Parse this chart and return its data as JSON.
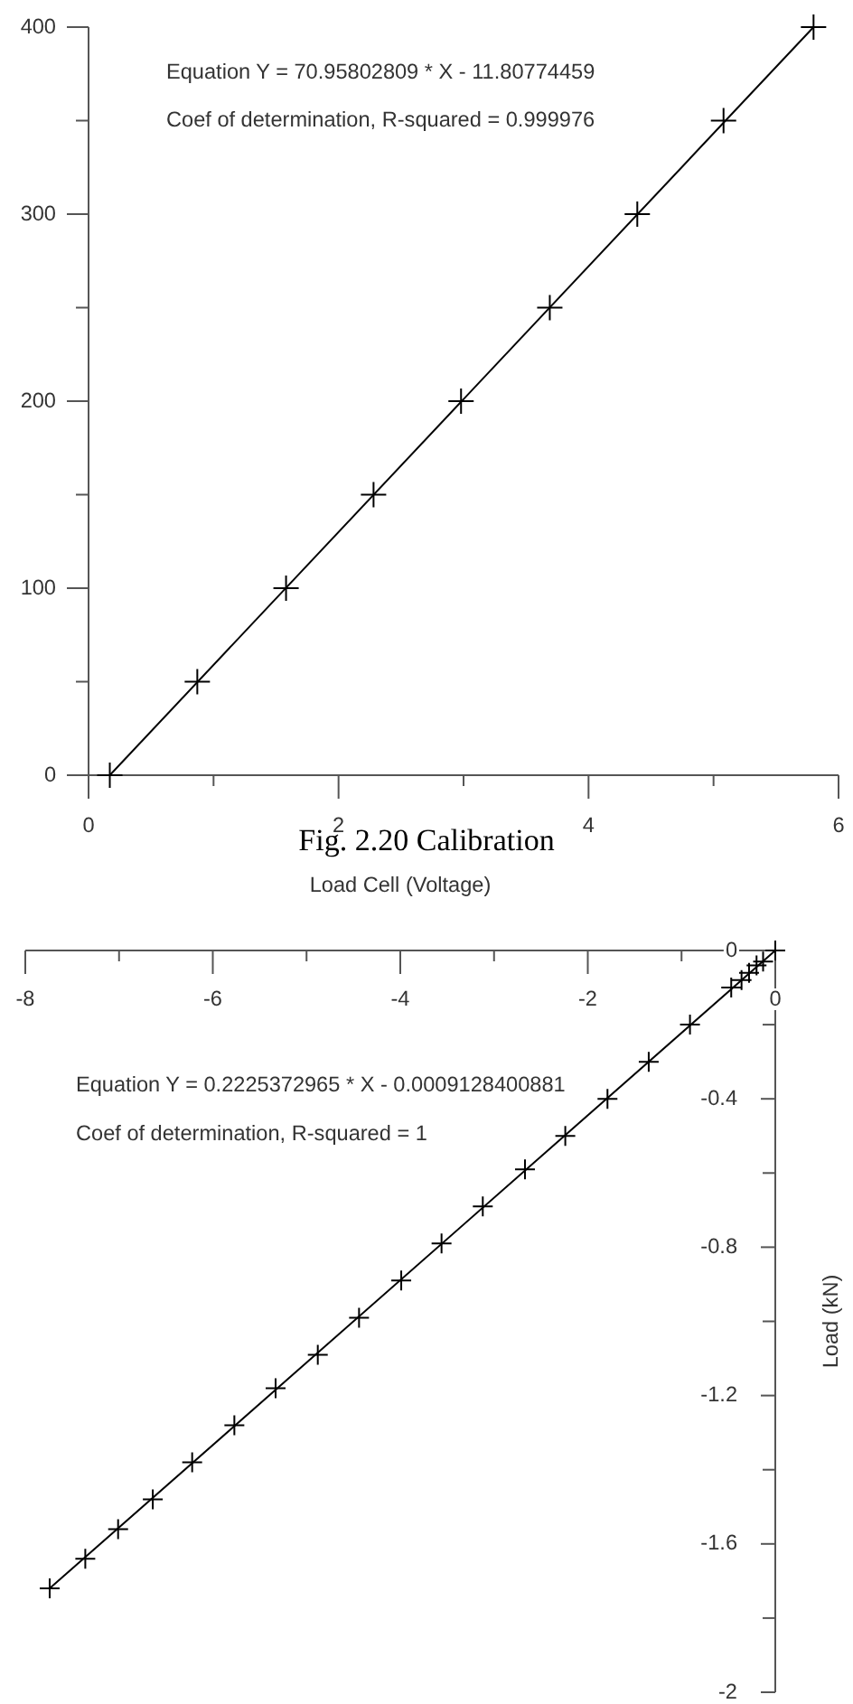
{
  "chart_data": [
    {
      "type": "scatter",
      "xlim": [
        0,
        6
      ],
      "xticks": [
        0,
        {
          "value": 1,
          "label": null
        },
        2,
        {
          "value": 3,
          "label": null
        },
        4,
        {
          "value": 5,
          "label": null
        },
        6
      ],
      "ylim": [
        0,
        400
      ],
      "yticks": [
        0,
        {
          "value": 50,
          "label": null
        },
        100,
        {
          "value": 150,
          "label": null
        },
        200,
        {
          "value": 250,
          "label": null
        },
        300,
        {
          "value": 350,
          "label": null
        },
        400
      ],
      "marker": "cross",
      "series": [
        {
          "type": "scatter",
          "color": "#000000",
          "x": [
            0.17,
            0.87,
            1.58,
            2.28,
            2.98,
            3.69,
            4.39,
            5.08,
            5.8
          ],
          "values": [
            0,
            50,
            100,
            150,
            200,
            250,
            300,
            350,
            400
          ]
        },
        {
          "type": "line",
          "marker": "none",
          "color": "#000000",
          "x": [
            0.17,
            5.8
          ],
          "values": [
            0,
            400
          ]
        }
      ],
      "annotations": [
        "Equation Y = 70.95802809 * X - 11.80774459",
        "Coef of determination, R-squared = 0.999976",
        "Fig. 2.20 Calibration"
      ]
    },
    {
      "type": "scatter",
      "xlabel": "Load Cell (Voltage)",
      "ylabel": "Load (kN)",
      "xlim": [
        -8,
        0
      ],
      "xticks": [
        -8,
        {
          "value": -7,
          "label": null
        },
        -6,
        {
          "value": -5,
          "label": null
        },
        -4,
        {
          "value": -3,
          "label": null
        },
        -2,
        {
          "value": -1,
          "label": null
        },
        0
      ],
      "ylim": [
        -2,
        0
      ],
      "yticks": [
        -2,
        {
          "value": -1.8,
          "label": null
        },
        -1.6,
        {
          "value": -1.4,
          "label": null
        },
        -1.2,
        {
          "value": -1,
          "label": null
        },
        -0.8,
        {
          "value": -0.6,
          "label": null
        },
        -0.4,
        {
          "value": -0.2,
          "label": null
        },
        0
      ],
      "marker": "cross",
      "series": [
        {
          "type": "scatter",
          "color": "#000000",
          "x": [
            -7.74,
            -7.36,
            -7.01,
            -6.64,
            -6.22,
            -5.77,
            -5.33,
            -4.88,
            -4.44,
            -3.99,
            -3.56,
            -3.12,
            -2.67,
            -2.24,
            -1.79,
            -1.35,
            -0.91,
            -0.47,
            -0.36,
            -0.28,
            -0.2,
            -0.13,
            0
          ],
          "values": [
            -1.72,
            -1.64,
            -1.56,
            -1.48,
            -1.38,
            -1.28,
            -1.18,
            -1.09,
            -0.99,
            -0.89,
            -0.79,
            -0.69,
            -0.59,
            -0.5,
            -0.4,
            -0.3,
            -0.2,
            -0.1,
            -0.08,
            -0.06,
            -0.04,
            -0.03,
            0
          ]
        },
        {
          "type": "line",
          "marker": "none",
          "color": "#000000",
          "x": [
            -7.74,
            0
          ],
          "values": [
            -1.72,
            0
          ]
        }
      ],
      "annotations": [
        "Equation Y = 0.2225372965 * X - 0.0009128400881",
        "Coef of determination, R-squared = 1"
      ]
    }
  ]
}
